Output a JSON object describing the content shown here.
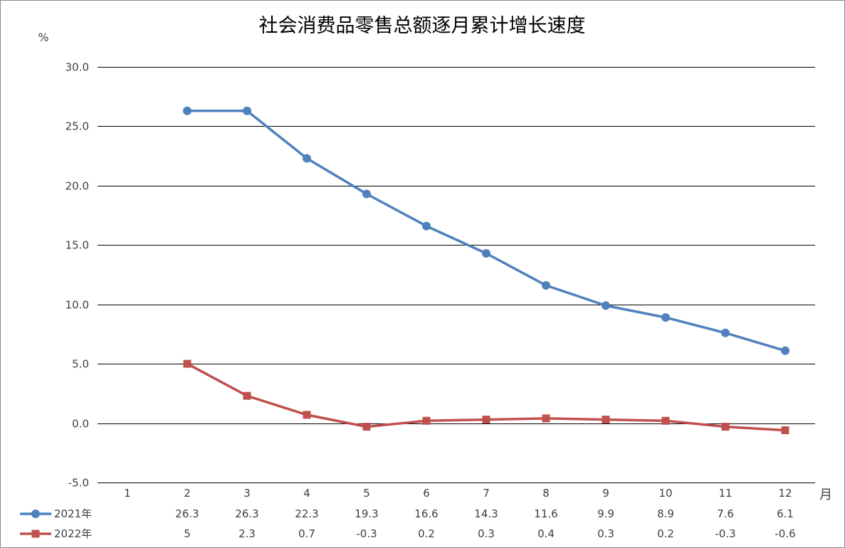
{
  "chart_data": {
    "type": "line",
    "title": "社会消费品零售总额逐月累计增长速度",
    "ylabel": "%",
    "xlabel": "月",
    "categories": [
      "1",
      "2",
      "3",
      "4",
      "5",
      "6",
      "7",
      "8",
      "9",
      "10",
      "11",
      "12"
    ],
    "ylim": [
      -5,
      30
    ],
    "y_tick_labels": [
      "-5.0",
      "0.0",
      "5.0",
      "10.0",
      "15.0",
      "20.0",
      "25.0",
      "30.0"
    ],
    "grid": true,
    "data_table": true,
    "legend": "bottom",
    "series": [
      {
        "name": "2021年",
        "color": "#4F81BD",
        "marker": "circle",
        "values": [
          null,
          26.3,
          26.3,
          22.3,
          19.3,
          16.6,
          14.3,
          11.6,
          9.9,
          8.9,
          7.6,
          6.1
        ]
      },
      {
        "name": "2022年",
        "color": "#C0504D",
        "marker": "square",
        "values": [
          null,
          5,
          2.3,
          0.7,
          -0.3,
          0.2,
          0.3,
          0.4,
          0.3,
          0.2,
          -0.3,
          -0.6
        ]
      }
    ]
  }
}
